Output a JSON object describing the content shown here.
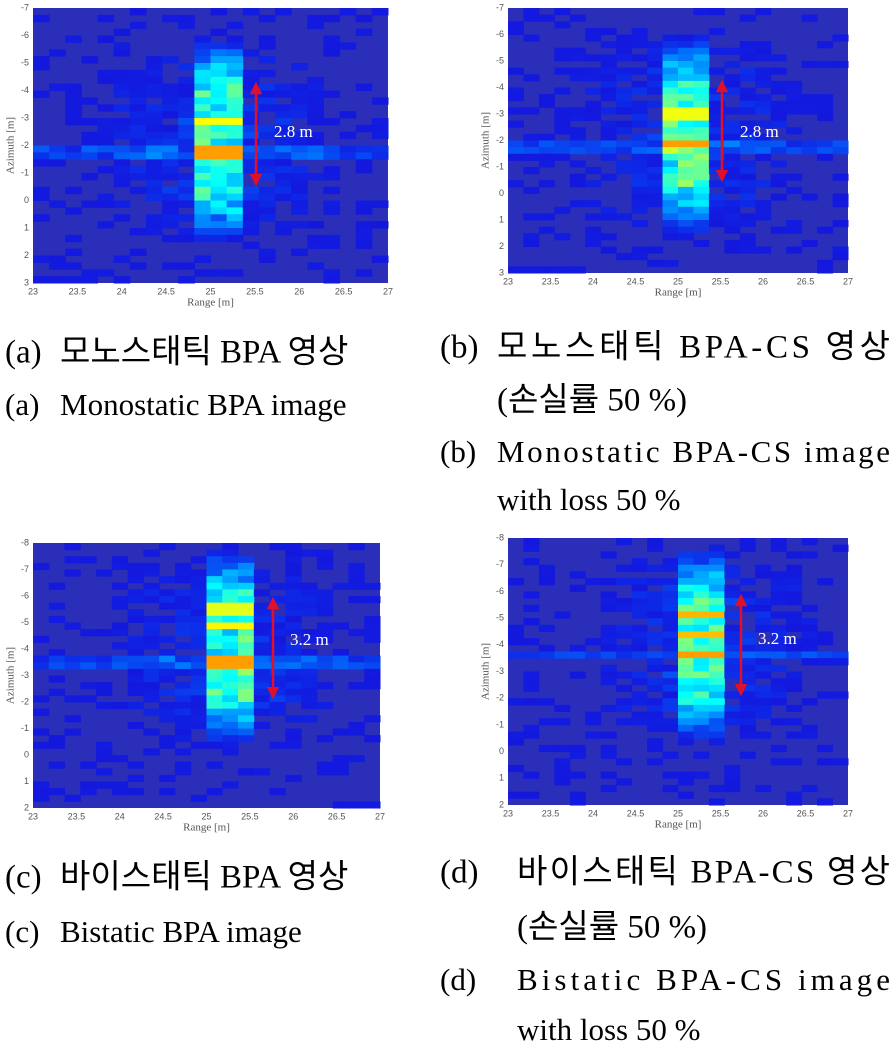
{
  "figures": [
    {
      "y_label": "Azimuth [m]",
      "x_label": "Range [m]",
      "annotation": "2.8 m",
      "y_ticks": [
        "-7",
        "-6",
        "-5",
        "-4",
        "-3",
        "-2",
        "-1",
        "0",
        "1",
        "2",
        "3"
      ],
      "x_ticks": [
        "23",
        "23.5",
        "24",
        "24.5",
        "25",
        "25.5",
        "26",
        "26.5",
        "27"
      ],
      "captions": [
        {
          "label": "(a)",
          "lines": [
            "모노스태틱 BPA 영상"
          ]
        },
        {
          "label": "(a)",
          "lines": [
            "Monostatic BPA image"
          ]
        }
      ]
    },
    {
      "y_label": "Azimuth [m]",
      "x_label": "Range [m]",
      "annotation": "2.8 m",
      "y_ticks": [
        "-7",
        "-6",
        "-5",
        "-4",
        "-3",
        "-2",
        "-1",
        "0",
        "1",
        "2",
        "3"
      ],
      "x_ticks": [
        "23",
        "23.5",
        "24",
        "24.5",
        "25",
        "25.5",
        "26",
        "26.5",
        "27"
      ],
      "captions": [
        {
          "label": "(b)",
          "lines": [
            "모노스태틱 BPA-CS 영상",
            "(손실률 50 %)"
          ]
        },
        {
          "label": "(b)",
          "lines": [
            "Monostatic BPA-CS image",
            "with loss 50 %"
          ]
        }
      ]
    },
    {
      "y_label": "Azimuth [m]",
      "x_label": "Range [m]",
      "annotation": "3.2 m",
      "y_ticks": [
        "-8",
        "-7",
        "-6",
        "-5",
        "-4",
        "-3",
        "-2",
        "-1",
        "0",
        "1",
        "2"
      ],
      "x_ticks": [
        "23",
        "23.5",
        "24",
        "24.5",
        "25",
        "25.5",
        "26",
        "26.5",
        "27"
      ],
      "captions": [
        {
          "label": "(c)",
          "lines": [
            "바이스태틱 BPA 영상"
          ]
        },
        {
          "label": "(c)",
          "lines": [
            "Bistatic BPA image"
          ]
        }
      ]
    },
    {
      "y_label": "Azimuth [m]",
      "x_label": "Range [m]",
      "annotation": "3.2 m",
      "y_ticks": [
        "-8",
        "-7",
        "-6",
        "-5",
        "-4",
        "-3",
        "-2",
        "-1",
        "0",
        "1",
        "2"
      ],
      "x_ticks": [
        "23",
        "23.5",
        "24",
        "24.5",
        "25",
        "25.5",
        "26",
        "26.5",
        "27"
      ],
      "captions": [
        {
          "label": "(d)",
          "lines": [
            "바이스태틱 BPA-CS 영상",
            "(손실률 50 %)"
          ]
        },
        {
          "label": "(d)",
          "lines": [
            "Bistatic BPA-CS image",
            "with loss 50 %"
          ]
        }
      ]
    }
  ]
}
